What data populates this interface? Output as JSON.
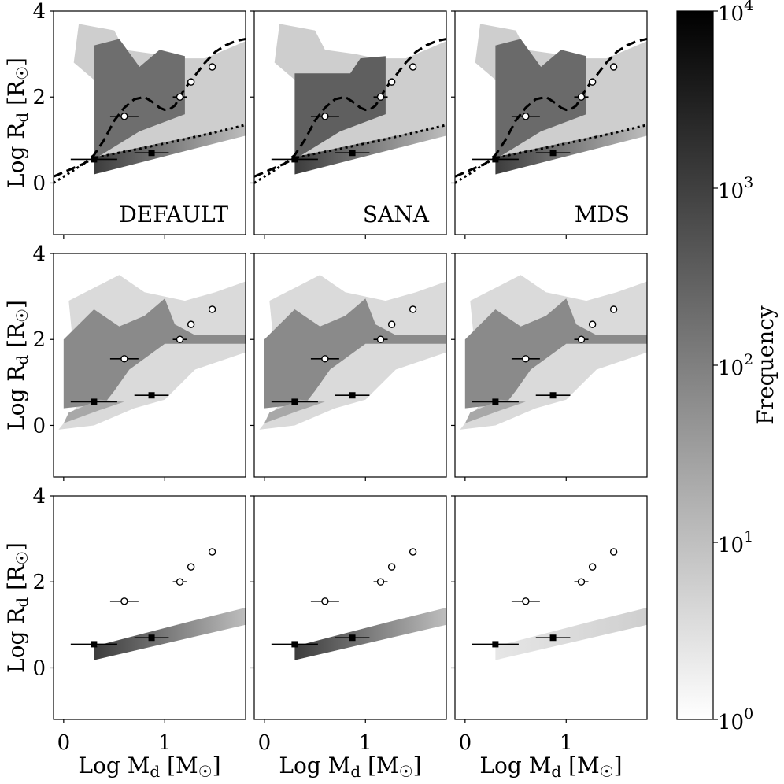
{
  "chart_data": {
    "type": "heatmap",
    "columns": [
      "DEFAULT",
      "SANA",
      "MDS"
    ],
    "xlabel": {
      "prefix": "Log M",
      "sub": "d",
      "bracket_open": " [M",
      "sun": "☉",
      "bracket_close": "]"
    },
    "ylabel": {
      "prefix": "Log R",
      "sub": "d",
      "bracket_open": " [R",
      "sun": "☉",
      "bracket_close": "]"
    },
    "xlim": [
      -0.1,
      1.8
    ],
    "ylim": [
      -1.2,
      4.0
    ],
    "xticks": [
      0,
      1
    ],
    "yticks": [
      0,
      2,
      4
    ],
    "colorbar": {
      "label": "Frequency",
      "scale": "log",
      "range": [
        1,
        10000
      ],
      "ticks": [
        {
          "value": 1,
          "base": "10",
          "exp": "0"
        },
        {
          "value": 10,
          "base": "10",
          "exp": "1"
        },
        {
          "value": 100,
          "base": "10",
          "exp": "2"
        },
        {
          "value": 1000,
          "base": "10",
          "exp": "3"
        },
        {
          "value": 10000,
          "base": "10",
          "exp": "4"
        }
      ],
      "colors": [
        "#ffffff",
        "#000000"
      ]
    },
    "observed_open": [
      {
        "x": 0.6,
        "y": 1.55,
        "xerr": 0.14
      },
      {
        "x": 1.15,
        "y": 2.0,
        "xerr": 0.07
      },
      {
        "x": 1.26,
        "y": 2.35,
        "xerr": 0.02
      },
      {
        "x": 1.47,
        "y": 2.7,
        "xerr": 0.02
      }
    ],
    "observed_filled": [
      {
        "x": 0.3,
        "y": 0.55,
        "xerr": 0.23
      },
      {
        "x": 0.87,
        "y": 0.7,
        "xerr": 0.17
      }
    ],
    "dashed_curve": {
      "x": [
        -0.1,
        0.0,
        0.1,
        0.2,
        0.3,
        0.4,
        0.5,
        0.55,
        0.6,
        0.7,
        0.8,
        0.9,
        0.95,
        1.0,
        1.05,
        1.1,
        1.15,
        1.2,
        1.3,
        1.4,
        1.5,
        1.6,
        1.7,
        1.8
      ],
      "y": [
        0.15,
        0.25,
        0.35,
        0.45,
        0.65,
        1.0,
        1.45,
        1.6,
        1.75,
        1.95,
        2.0,
        1.85,
        1.75,
        1.7,
        1.72,
        1.8,
        2.0,
        2.2,
        2.5,
        2.8,
        3.05,
        3.2,
        3.3,
        3.35
      ]
    },
    "dotted_curve": {
      "x": [
        -0.1,
        0.0,
        0.1,
        0.2,
        0.3,
        0.5,
        0.8,
        1.0,
        1.2,
        1.5,
        1.8
      ],
      "y": [
        0.0,
        0.15,
        0.3,
        0.45,
        0.58,
        0.68,
        0.82,
        0.92,
        1.02,
        1.18,
        1.35
      ]
    }
  }
}
